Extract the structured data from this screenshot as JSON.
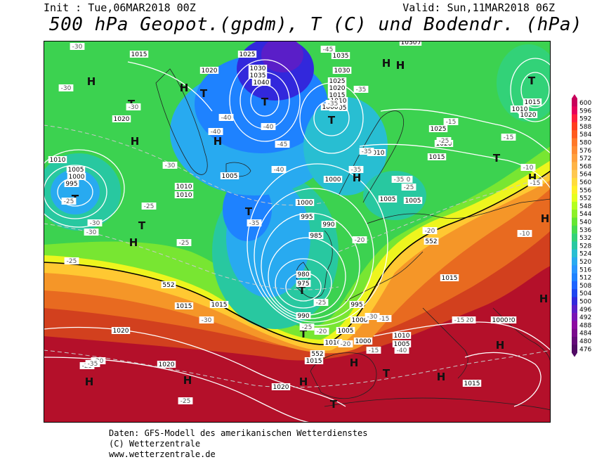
{
  "header": {
    "init": "Init : Tue,06MAR2018 00Z",
    "valid": "Valid: Sun,11MAR2018 06Z",
    "title": "500 hPa Geopot.(gpdm), T (C) und Bodendr. (hPa)"
  },
  "legend": {
    "values": [
      "600",
      "596",
      "592",
      "588",
      "584",
      "580",
      "576",
      "572",
      "568",
      "564",
      "560",
      "556",
      "552",
      "548",
      "544",
      "540",
      "536",
      "532",
      "528",
      "524",
      "520",
      "516",
      "512",
      "508",
      "504",
      "500",
      "496",
      "492",
      "488",
      "484",
      "480",
      "476"
    ],
    "colors": [
      "#c8005a",
      "#e6005a",
      "#ff1e3c",
      "#ff3c1e",
      "#ff5a1e",
      "#ff7828",
      "#ff8c32",
      "#ffa03c",
      "#ffb446",
      "#ffc850",
      "#ffdc3c",
      "#fff028",
      "#e6ff1e",
      "#b4ff1e",
      "#8cf028",
      "#64e632",
      "#46dc50",
      "#32d278",
      "#28c8a0",
      "#28bed2",
      "#28aaf0",
      "#2896ff",
      "#1e82ff",
      "#1e64ff",
      "#1e46f0",
      "#3228dc",
      "#5a1ec8",
      "#7814b4",
      "#8c0aa0",
      "#7a0a8c",
      "#640a78",
      "#500a64"
    ]
  },
  "map_labels": {
    "highs": [
      "H",
      "H",
      "H",
      "H",
      "H",
      "H",
      "H",
      "H",
      "H",
      "H",
      "H",
      "H",
      "H",
      "H",
      "H",
      "H",
      "H",
      "H",
      "H"
    ],
    "lows": [
      "T",
      "T",
      "T",
      "T",
      "T",
      "T",
      "T",
      "T",
      "T",
      "T",
      "T",
      "T",
      "T",
      "T",
      "T"
    ],
    "pressure": [
      "1015",
      "1020",
      "1025",
      "1030",
      "1035",
      "1040",
      "1030",
      "1035",
      "1030",
      "1025",
      "1020",
      "1015",
      "1010",
      "1005",
      "1000",
      "1030",
      "1030",
      "1025",
      "1020",
      "1015",
      "1010",
      "1005",
      "1000",
      "1020",
      "1015",
      "1010",
      "1005",
      "1000",
      "995",
      "1015",
      "1010",
      "1005",
      "1000",
      "995",
      "990",
      "985",
      "980",
      "975",
      "990",
      "995",
      "1000",
      "1005",
      "1010",
      "1015",
      "1005",
      "1015",
      "1010",
      "1005",
      "1000",
      "1015",
      "1020",
      "1015",
      "1020",
      "1020",
      "1015",
      "1010",
      "1015",
      "1020",
      "1020",
      "1000",
      "1005",
      "1010"
    ],
    "temperature": [
      "-30",
      "-30",
      "-30",
      "-25",
      "-30",
      "-30",
      "-35",
      "-40",
      "-45",
      "-35",
      "-35",
      "-40",
      "-45",
      "-40",
      "-35",
      "-30",
      "-25",
      "-35",
      "-25",
      "-20",
      "-20",
      "-30",
      "-35",
      "-30",
      "-25",
      "-30",
      "-25",
      "-25",
      "-25",
      "-20",
      "-20",
      "-15",
      "-15",
      "-15",
      "-15",
      "-15",
      "-10",
      "-10",
      "-15",
      "-20",
      "-25",
      "-25",
      "-20",
      "-35",
      "-30",
      "-25",
      "-30",
      "-40",
      "-40",
      "-15"
    ],
    "contour_552": [
      "552",
      "552",
      "552"
    ]
  },
  "footer": {
    "line1": "Daten: GFS-Modell des amerikanischen Wetterdienstes",
    "line2": "(C) Wetterzentrale",
    "line3": "www.wetterzentrale.de"
  }
}
